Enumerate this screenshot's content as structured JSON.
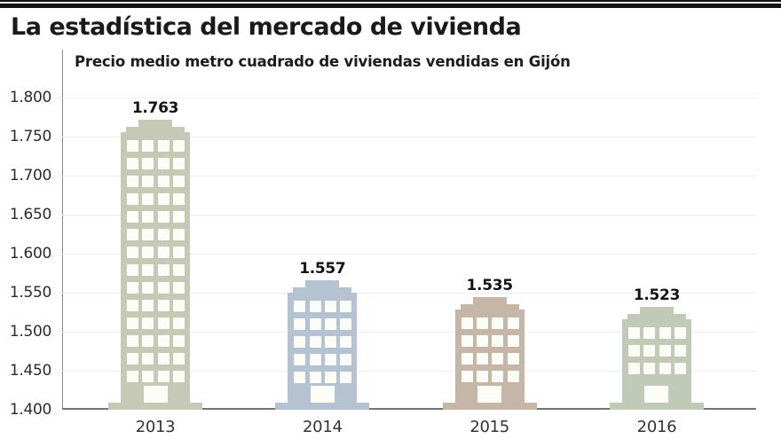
{
  "header": {
    "title": "La estadística del mercado de vivienda"
  },
  "chart_data": {
    "type": "bar",
    "bar_style": "building-pictogram",
    "title": "Precio medio metro cuadrado de viviendas vendidas en Gijón",
    "categories": [
      "2013",
      "2014",
      "2015",
      "2016"
    ],
    "values": [
      1763,
      1557,
      1535,
      1523
    ],
    "value_labels": [
      "1.763",
      "1.557",
      "1.535",
      "1.523"
    ],
    "ylim": [
      1400,
      1800
    ],
    "ytick_step": 50,
    "ytick_labels": [
      "1.400",
      "1.450",
      "1.500",
      "1.550",
      "1.600",
      "1.650",
      "1.700",
      "1.750",
      "1.800"
    ],
    "grid": true,
    "legend": false,
    "bar_colors": [
      "#c6c9b6",
      "#b4c2d1",
      "#c6b6a7",
      "#c1cab6"
    ],
    "window_color": "#fdfdf8",
    "colors": {
      "grid_line": "#ececec",
      "baseline": "#757575",
      "axis_line": "#888888",
      "text": "#2b2b2b",
      "title": "#1a1a1a",
      "top_rule": "#121212"
    }
  }
}
